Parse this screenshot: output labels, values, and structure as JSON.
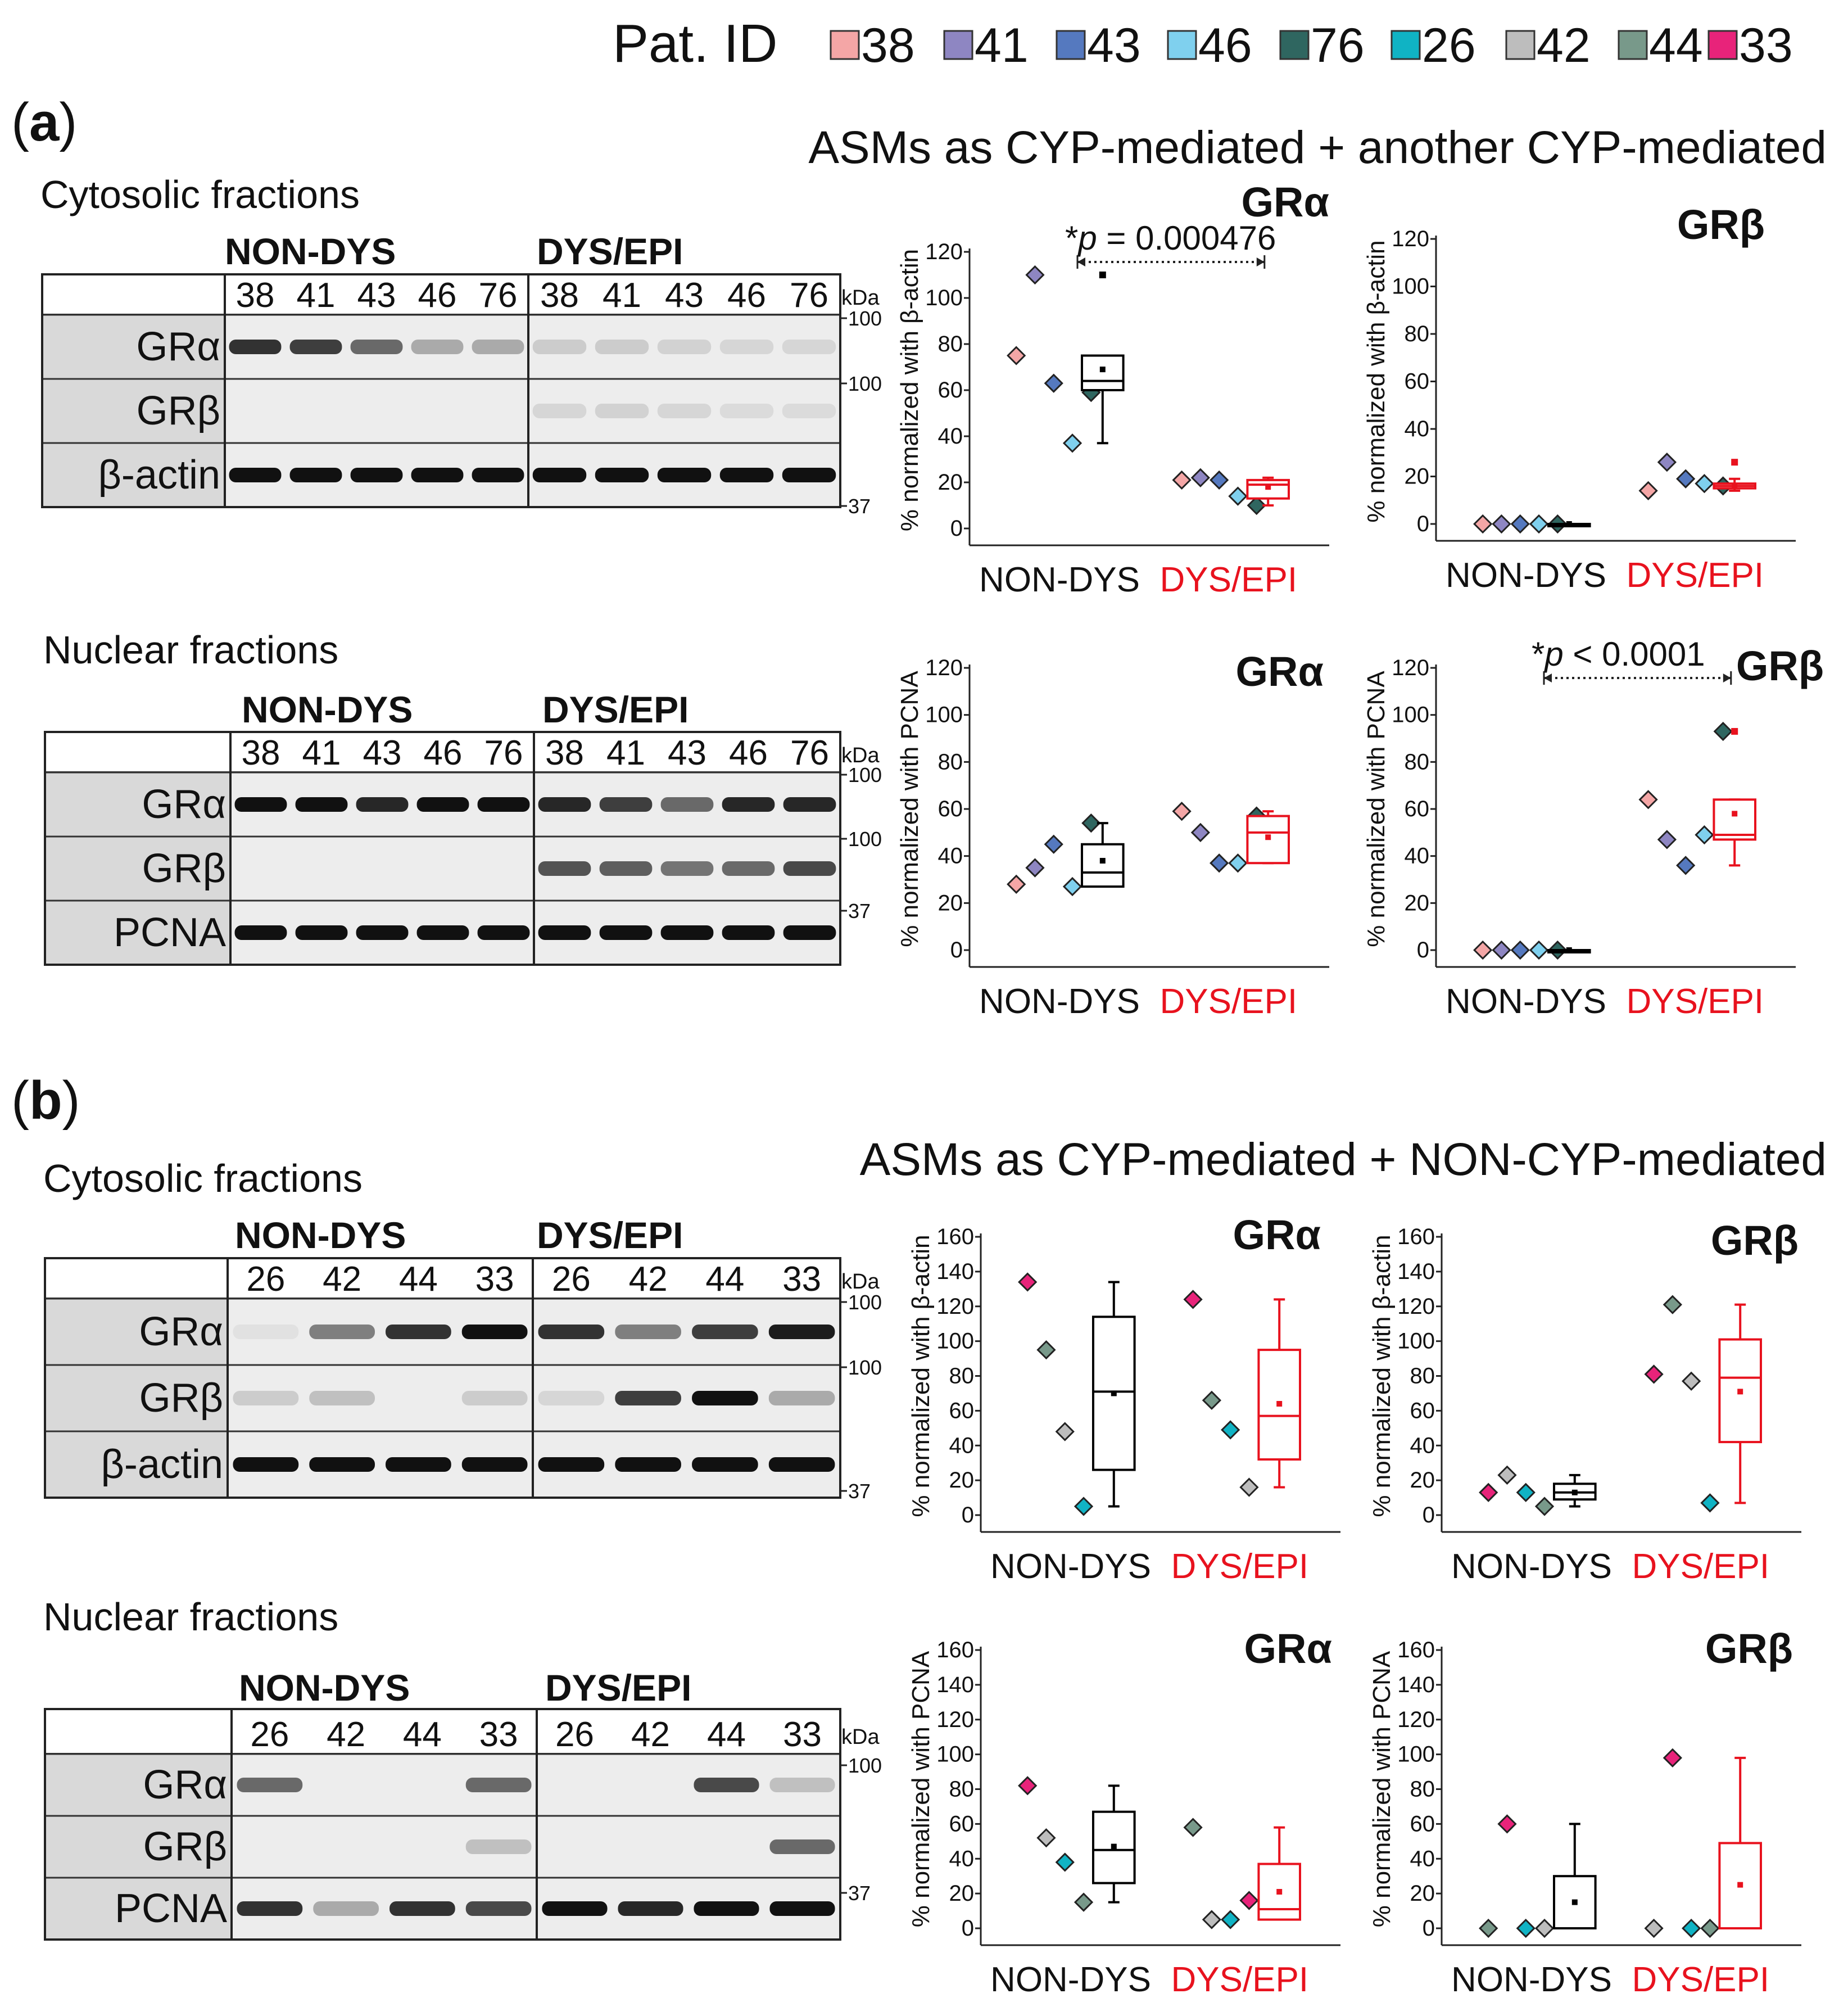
{
  "legend": {
    "label": "Pat. ID",
    "items": [
      {
        "id": "38",
        "color": "#f4a6a6"
      },
      {
        "id": "41",
        "color": "#8e86c2"
      },
      {
        "id": "43",
        "color": "#5579bf"
      },
      {
        "id": "46",
        "color": "#7fd0ee"
      },
      {
        "id": "76",
        "color": "#2f6660"
      },
      {
        "id": "26",
        "color": "#10b3c4"
      },
      {
        "id": "42",
        "color": "#bdbdbd"
      },
      {
        "id": "44",
        "color": "#78998a"
      },
      {
        "id": "33",
        "color": "#e8237a"
      }
    ]
  },
  "panels": [
    {
      "label_open": "(",
      "label_letter": "a",
      "label_close": ")",
      "title": "ASMs as CYP-mediated + another CYP-mediated",
      "blots": [
        {
          "fraction": "Cytosolic fractions",
          "group1": "NON-DYS",
          "group2": "DYS/EPI",
          "lanes1": [
            "38",
            "41",
            "43",
            "46",
            "76"
          ],
          "lanes2": [
            "38",
            "41",
            "43",
            "46",
            "76"
          ],
          "rows": [
            "GRα",
            "GRβ",
            "β-actin"
          ],
          "kda": "kDa",
          "markers": [
            "100",
            "100",
            "37"
          ]
        },
        {
          "fraction": "Nuclear fractions",
          "group1": "NON-DYS",
          "group2": "DYS/EPI",
          "lanes1": [
            "38",
            "41",
            "43",
            "46",
            "76"
          ],
          "lanes2": [
            "38",
            "41",
            "43",
            "46",
            "76"
          ],
          "rows": [
            "GRα",
            "GRβ",
            "PCNA"
          ],
          "kda": "kDa",
          "markers": [
            "100",
            "100",
            "37"
          ]
        }
      ]
    },
    {
      "label_open": "(",
      "label_letter": "b",
      "label_close": ")",
      "title": "ASMs as CYP-mediated + NON-CYP-mediated",
      "blots": [
        {
          "fraction": "Cytosolic fractions",
          "group1": "NON-DYS",
          "group2": "DYS/EPI",
          "lanes1": [
            "26",
            "42",
            "44",
            "33"
          ],
          "lanes2": [
            "26",
            "42",
            "44",
            "33"
          ],
          "rows": [
            "GRα",
            "GRβ",
            "β-actin"
          ],
          "kda": "kDa",
          "markers": [
            "100",
            "100",
            "37"
          ]
        },
        {
          "fraction": "Nuclear fractions",
          "group1": "NON-DYS",
          "group2": "DYS/EPI",
          "lanes1": [
            "26",
            "42",
            "44",
            "33"
          ],
          "lanes2": [
            "26",
            "42",
            "44",
            "33"
          ],
          "rows": [
            "GRα",
            "GRβ",
            "PCNA"
          ],
          "kda": "kDa",
          "markers": [
            "100",
            "37"
          ]
        }
      ]
    }
  ],
  "chart_data": [
    {
      "type": "scatter",
      "panel": "a",
      "fraction": "Cytosolic",
      "title": "GRα",
      "ylabel": "% normalized with β-actin",
      "ylim": [
        0,
        120
      ],
      "yticks": [
        0,
        20,
        40,
        60,
        80,
        100,
        120
      ],
      "categories": [
        "NON-DYS",
        "DYS/EPI"
      ],
      "groups": [
        {
          "name": "NON-DYS",
          "color": "#000000",
          "points": [
            {
              "id": "38",
              "value": 75
            },
            {
              "id": "41",
              "value": 110
            },
            {
              "id": "43",
              "value": 63
            },
            {
              "id": "46",
              "value": 37
            },
            {
              "id": "76",
              "value": 59
            }
          ],
          "box": {
            "min": 37,
            "q1": 60,
            "median": 64,
            "q3": 75,
            "max": 75,
            "mean": 69
          },
          "outlier": 110
        },
        {
          "name": "DYS/EPI",
          "color": "#e8121e",
          "points": [
            {
              "id": "38",
              "value": 21
            },
            {
              "id": "41",
              "value": 22
            },
            {
              "id": "43",
              "value": 21
            },
            {
              "id": "46",
              "value": 14
            },
            {
              "id": "76",
              "value": 10
            }
          ],
          "box": {
            "min": 10,
            "q1": 13,
            "median": 19,
            "q3": 21,
            "max": 22,
            "mean": 18
          }
        }
      ],
      "annotation": {
        "star": "*",
        "p": "p",
        "text": " = 0.000476"
      }
    },
    {
      "type": "scatter",
      "panel": "a",
      "fraction": "Cytosolic",
      "title": "GRβ",
      "ylabel": "% normalized with β-actin",
      "ylim": [
        0,
        120
      ],
      "yticks": [
        0,
        20,
        40,
        60,
        80,
        100,
        120
      ],
      "categories": [
        "NON-DYS",
        "DYS/EPI"
      ],
      "groups": [
        {
          "name": "NON-DYS",
          "color": "#000000",
          "points": [
            {
              "id": "38",
              "value": 0
            },
            {
              "id": "41",
              "value": 0
            },
            {
              "id": "43",
              "value": 0
            },
            {
              "id": "46",
              "value": 0
            },
            {
              "id": "76",
              "value": 0
            }
          ],
          "box": {
            "min": 0,
            "q1": 0,
            "median": 0,
            "q3": 0,
            "max": 0,
            "mean": 0
          }
        },
        {
          "name": "DYS/EPI",
          "color": "#e8121e",
          "points": [
            {
              "id": "38",
              "value": 14
            },
            {
              "id": "41",
              "value": 26
            },
            {
              "id": "43",
              "value": 19
            },
            {
              "id": "46",
              "value": 17
            },
            {
              "id": "76",
              "value": 16
            }
          ],
          "box": {
            "min": 14,
            "q1": 15,
            "median": 16,
            "q3": 17,
            "max": 19,
            "mean": 16
          },
          "outlier": 26
        }
      ]
    },
    {
      "type": "scatter",
      "panel": "a",
      "fraction": "Nuclear",
      "title": "GRα",
      "ylabel": "% normalized with PCNA",
      "ylim": [
        0,
        120
      ],
      "yticks": [
        0,
        20,
        40,
        60,
        80,
        100,
        120
      ],
      "categories": [
        "NON-DYS",
        "DYS/EPI"
      ],
      "groups": [
        {
          "name": "NON-DYS",
          "color": "#000000",
          "points": [
            {
              "id": "38",
              "value": 28
            },
            {
              "id": "41",
              "value": 35
            },
            {
              "id": "43",
              "value": 45
            },
            {
              "id": "46",
              "value": 27
            },
            {
              "id": "76",
              "value": 54
            }
          ],
          "box": {
            "min": 27,
            "q1": 27,
            "median": 33,
            "q3": 45,
            "max": 54,
            "mean": 38
          }
        },
        {
          "name": "DYS/EPI",
          "color": "#e8121e",
          "points": [
            {
              "id": "38",
              "value": 59
            },
            {
              "id": "41",
              "value": 50
            },
            {
              "id": "43",
              "value": 37
            },
            {
              "id": "46",
              "value": 37
            },
            {
              "id": "76",
              "value": 57
            }
          ],
          "box": {
            "min": 37,
            "q1": 37,
            "median": 50,
            "q3": 57,
            "max": 59,
            "mean": 48
          }
        }
      ]
    },
    {
      "type": "scatter",
      "panel": "a",
      "fraction": "Nuclear",
      "title": "GRβ",
      "ylabel": "% normalized with PCNA",
      "ylim": [
        0,
        120
      ],
      "yticks": [
        0,
        20,
        40,
        60,
        80,
        100,
        120
      ],
      "categories": [
        "NON-DYS",
        "DYS/EPI"
      ],
      "groups": [
        {
          "name": "NON-DYS",
          "color": "#000000",
          "points": [
            {
              "id": "38",
              "value": 0
            },
            {
              "id": "41",
              "value": 0
            },
            {
              "id": "43",
              "value": 0
            },
            {
              "id": "46",
              "value": 0
            },
            {
              "id": "76",
              "value": 0
            }
          ],
          "box": {
            "min": 0,
            "q1": 0,
            "median": 0,
            "q3": 0,
            "max": 0,
            "mean": 0
          }
        },
        {
          "name": "DYS/EPI",
          "color": "#e8121e",
          "points": [
            {
              "id": "38",
              "value": 64
            },
            {
              "id": "41",
              "value": 47
            },
            {
              "id": "43",
              "value": 36
            },
            {
              "id": "46",
              "value": 49
            },
            {
              "id": "76",
              "value": 93
            }
          ],
          "box": {
            "min": 36,
            "q1": 47,
            "median": 49,
            "q3": 64,
            "max": 64,
            "mean": 58
          },
          "outlier": 93
        }
      ],
      "annotation": {
        "star": "*",
        "p": "p",
        "text": " < 0.0001"
      }
    },
    {
      "type": "scatter",
      "panel": "b",
      "fraction": "Cytosolic",
      "title": "GRα",
      "ylabel": "% normalized with β-actin",
      "ylim": [
        0,
        160
      ],
      "yticks": [
        0,
        20,
        40,
        60,
        80,
        100,
        120,
        140,
        160
      ],
      "categories": [
        "NON-DYS",
        "DYS/EPI"
      ],
      "groups": [
        {
          "name": "NON-DYS",
          "color": "#000000",
          "points": [
            {
              "id": "33",
              "value": 134
            },
            {
              "id": "44",
              "value": 95
            },
            {
              "id": "42",
              "value": 48
            },
            {
              "id": "26",
              "value": 5
            }
          ],
          "box": {
            "min": 5,
            "q1": 26,
            "median": 71,
            "q3": 114,
            "max": 134,
            "mean": 70
          }
        },
        {
          "name": "DYS/EPI",
          "color": "#e8121e",
          "points": [
            {
              "id": "33",
              "value": 124
            },
            {
              "id": "44",
              "value": 66
            },
            {
              "id": "26",
              "value": 49
            },
            {
              "id": "42",
              "value": 16
            }
          ],
          "box": {
            "min": 16,
            "q1": 32,
            "median": 57,
            "q3": 95,
            "max": 124,
            "mean": 64
          }
        }
      ]
    },
    {
      "type": "scatter",
      "panel": "b",
      "fraction": "Cytosolic",
      "title": "GRβ",
      "ylabel": "% normalized with β-actin",
      "ylim": [
        0,
        160
      ],
      "yticks": [
        0,
        20,
        40,
        60,
        80,
        100,
        120,
        140,
        160
      ],
      "categories": [
        "NON-DYS",
        "DYS/EPI"
      ],
      "groups": [
        {
          "name": "NON-DYS",
          "color": "#000000",
          "points": [
            {
              "id": "33",
              "value": 13
            },
            {
              "id": "42",
              "value": 23
            },
            {
              "id": "26",
              "value": 13
            },
            {
              "id": "44",
              "value": 5
            }
          ],
          "box": {
            "min": 5,
            "q1": 9,
            "median": 13,
            "q3": 18,
            "max": 23,
            "mean": 13
          }
        },
        {
          "name": "DYS/EPI",
          "color": "#e8121e",
          "points": [
            {
              "id": "33",
              "value": 81
            },
            {
              "id": "44",
              "value": 121
            },
            {
              "id": "42",
              "value": 77
            },
            {
              "id": "26",
              "value": 7
            }
          ],
          "box": {
            "min": 7,
            "q1": 42,
            "median": 79,
            "q3": 101,
            "max": 121,
            "mean": 71
          }
        }
      ]
    },
    {
      "type": "scatter",
      "panel": "b",
      "fraction": "Nuclear",
      "title": "GRα",
      "ylabel": "% normalized with PCNA",
      "ylim": [
        0,
        160
      ],
      "yticks": [
        0,
        20,
        40,
        60,
        80,
        100,
        120,
        140,
        160
      ],
      "categories": [
        "NON-DYS",
        "DYS/EPI"
      ],
      "groups": [
        {
          "name": "NON-DYS",
          "color": "#000000",
          "points": [
            {
              "id": "33",
              "value": 82
            },
            {
              "id": "42",
              "value": 52
            },
            {
              "id": "26",
              "value": 38
            },
            {
              "id": "44",
              "value": 15
            }
          ],
          "box": {
            "min": 15,
            "q1": 26,
            "median": 45,
            "q3": 67,
            "max": 82,
            "mean": 47
          }
        },
        {
          "name": "DYS/EPI",
          "color": "#e8121e",
          "points": [
            {
              "id": "44",
              "value": 58
            },
            {
              "id": "42",
              "value": 5
            },
            {
              "id": "26",
              "value": 5
            },
            {
              "id": "33",
              "value": 16
            }
          ],
          "box": {
            "min": 5,
            "q1": 5,
            "median": 11,
            "q3": 37,
            "max": 58,
            "mean": 21
          }
        }
      ]
    },
    {
      "type": "scatter",
      "panel": "b",
      "fraction": "Nuclear",
      "title": "GRβ",
      "ylabel": "% normalized with PCNA",
      "ylim": [
        0,
        160
      ],
      "yticks": [
        0,
        20,
        40,
        60,
        80,
        100,
        120,
        140,
        160
      ],
      "categories": [
        "NON-DYS",
        "DYS/EPI"
      ],
      "groups": [
        {
          "name": "NON-DYS",
          "color": "#000000",
          "points": [
            {
              "id": "44",
              "value": 0
            },
            {
              "id": "33",
              "value": 60
            },
            {
              "id": "26",
              "value": 0
            },
            {
              "id": "42",
              "value": 0
            }
          ],
          "box": {
            "min": 0,
            "q1": 0,
            "median": 0,
            "q3": 30,
            "max": 60,
            "mean": 15
          }
        },
        {
          "name": "DYS/EPI",
          "color": "#e8121e",
          "points": [
            {
              "id": "42",
              "value": 0
            },
            {
              "id": "33",
              "value": 98
            },
            {
              "id": "26",
              "value": 0
            },
            {
              "id": "44",
              "value": 0
            }
          ],
          "box": {
            "min": 0,
            "q1": 0,
            "median": 0,
            "q3": 49,
            "max": 98,
            "mean": 25
          }
        }
      ]
    }
  ]
}
